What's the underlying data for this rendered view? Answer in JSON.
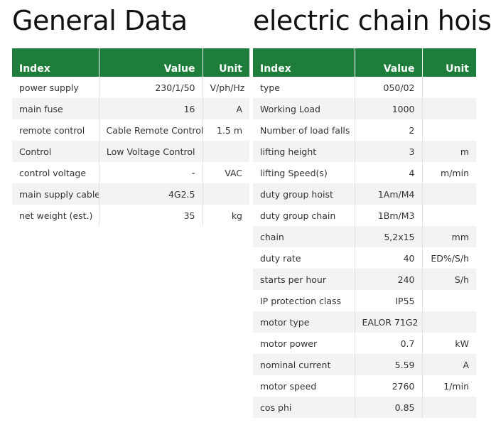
{
  "general": {
    "title": "General Data",
    "headers": {
      "index": "Index",
      "value": "Value",
      "unit": "Unit"
    },
    "rows": [
      {
        "index": "power supply",
        "value": "230/1/50",
        "unit": "V/ph/Hz"
      },
      {
        "index": "main fuse",
        "value": "16",
        "unit": "A"
      },
      {
        "index": "remote control",
        "value": "Cable Remote Control",
        "unit": "1.5 m"
      },
      {
        "index": "Control",
        "value": "Low Voltage Control",
        "unit": ""
      },
      {
        "index": "control voltage",
        "value": "-",
        "unit": "VAC"
      },
      {
        "index": "main supply cable",
        "value": "4G2.5",
        "unit": ""
      },
      {
        "index": "net weight (est.)",
        "value": "35",
        "unit": "kg"
      }
    ]
  },
  "hoist": {
    "title": "electric chain hoist",
    "headers": {
      "index": "Index",
      "value": "Value",
      "unit": "Unit"
    },
    "rows": [
      {
        "index": "type",
        "value": "050/02",
        "unit": ""
      },
      {
        "index": "Working Load",
        "value": "1000",
        "unit": ""
      },
      {
        "index": "Number of load falls",
        "value": "2",
        "unit": ""
      },
      {
        "index": "lifting height",
        "value": "3",
        "unit": "m"
      },
      {
        "index": "lifting Speed(s)",
        "value": "4",
        "unit": "m/min"
      },
      {
        "index": "duty group hoist",
        "value": "1Am/M4",
        "unit": ""
      },
      {
        "index": "duty group chain",
        "value": "1Bm/M3",
        "unit": ""
      },
      {
        "index": "chain",
        "value": "5,2x15",
        "unit": "mm"
      },
      {
        "index": "duty rate",
        "value": "40",
        "unit": "ED%/S/h"
      },
      {
        "index": "starts per hour",
        "value": "240",
        "unit": "S/h"
      },
      {
        "index": "IP protection class",
        "value": "IP55",
        "unit": ""
      },
      {
        "index": "motor type",
        "value": "EALOR 71G2",
        "unit": ""
      },
      {
        "index": "motor power",
        "value": "0.7",
        "unit": "kW"
      },
      {
        "index": "nominal current",
        "value": "5.59",
        "unit": "A"
      },
      {
        "index": "motor speed",
        "value": "2760",
        "unit": "1/min"
      },
      {
        "index": "cos phi",
        "value": "0.85",
        "unit": ""
      }
    ]
  },
  "colors": {
    "header_bg": "#1e7d3a",
    "stripe_bg": "#f3f3f3"
  }
}
